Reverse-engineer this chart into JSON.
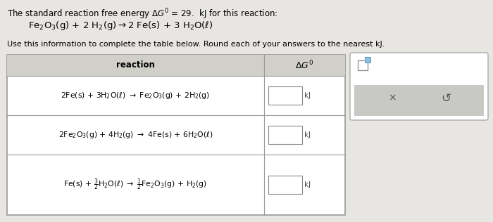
{
  "bg_color": "#e8e6e2",
  "title": "The standard reaction free energy $\\Delta G^{0}$ = 29.  kJ for this reaction:",
  "reaction_given": "Fe$_2$O$_3$(g) + 2 H$_2$(g)$\\rightarrow$2 Fe(s) + 3 H$_2$O($\\ell$)",
  "instruction": "Use this information to complete the table below. Round each of your answers to the nearest kJ.",
  "col1_header": "reaction",
  "col2_header": "$\\Delta G^{0}$",
  "row1_eq": "2Fe(s) + 3H$_2$O($\\ell$) $\\rightarrow$ Fe$_2$O$_3$(g) + 2H$_2$(g)",
  "row2_eq": "2Fe$_2$O$_3$(g) + 4H$_2$(g) $\\rightarrow$ 4Fe(s) + 6H$_2$O($\\ell$)",
  "row3_eq": "Fe(s) + $\\frac{3}{2}$H$_2$O($\\ell$) $\\rightarrow$ $\\frac{1}{2}$Fe$_2$O$_3$(g) + H$_2$(g)",
  "row1_val": "kJ",
  "row2_val": "kJ",
  "row3_val": "kJ",
  "table_bg": "#ffffff",
  "header_bg": "#d0cfc8",
  "border_color": "#999999",
  "side_bg": "#ffffff",
  "side_gray": "#c8c8c4",
  "side_border": "#aaaaaa"
}
